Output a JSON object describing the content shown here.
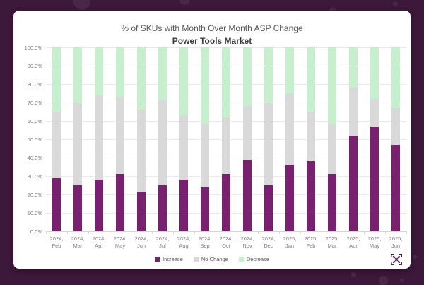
{
  "page": {
    "background_color": "#3C183A",
    "card_color": "#FFFFFF"
  },
  "branding": {
    "icon": "network-nodes-icon",
    "icon_color": "#4E2150"
  },
  "chart_data": {
    "type": "bar",
    "stacked": true,
    "title": "% of SKUs with Month Over Month ASP Change",
    "subtitle": "Power Tools Market",
    "grid": true,
    "legend_position": "bottom",
    "y_axis": {
      "min": 0,
      "max": 100,
      "unit": "%",
      "tick_labels": [
        "100.0%",
        "90.0%",
        "80.0%",
        "70.0%",
        "60.0%",
        "50.0%",
        "40.0%",
        "30.0%",
        "20.0%",
        "10.0%",
        "0.0%"
      ]
    },
    "categories": [
      {
        "top": "2024,",
        "bottom": "Feb"
      },
      {
        "top": "2024,",
        "bottom": "Mar"
      },
      {
        "top": "2024,",
        "bottom": "Apr"
      },
      {
        "top": "2024,",
        "bottom": "May"
      },
      {
        "top": "2024,",
        "bottom": "Jun"
      },
      {
        "top": "2024,",
        "bottom": "Jul"
      },
      {
        "top": "2024,",
        "bottom": "Aug"
      },
      {
        "top": "2024,",
        "bottom": "Sep"
      },
      {
        "top": "2024,",
        "bottom": "Oct"
      },
      {
        "top": "2024,",
        "bottom": "Nov"
      },
      {
        "top": "2024,",
        "bottom": "Dec"
      },
      {
        "top": "2025,",
        "bottom": "Jan"
      },
      {
        "top": "2025,",
        "bottom": "Feb"
      },
      {
        "top": "2025,",
        "bottom": "Mar"
      },
      {
        "top": "2025,",
        "bottom": "Apr"
      },
      {
        "top": "2025,",
        "bottom": "May"
      },
      {
        "top": "2025,",
        "bottom": "Jun"
      }
    ],
    "series": [
      {
        "name": "Increase",
        "color": "#7A2071",
        "values": [
          29,
          25,
          28,
          31,
          21,
          25,
          28,
          24,
          31,
          39,
          25,
          36,
          38,
          31,
          52,
          57,
          47
        ]
      },
      {
        "name": "No Change",
        "color": "#D9D9D9",
        "values": [
          36,
          45,
          46,
          42,
          45,
          46,
          35,
          34,
          31,
          29,
          45,
          39,
          27,
          27,
          26,
          15,
          20
        ]
      },
      {
        "name": "Decrease",
        "color": "#C6EFCE",
        "values": [
          35,
          30,
          26,
          27,
          34,
          29,
          37,
          42,
          38,
          32,
          30,
          25,
          35,
          42,
          22,
          28,
          33
        ]
      }
    ]
  }
}
